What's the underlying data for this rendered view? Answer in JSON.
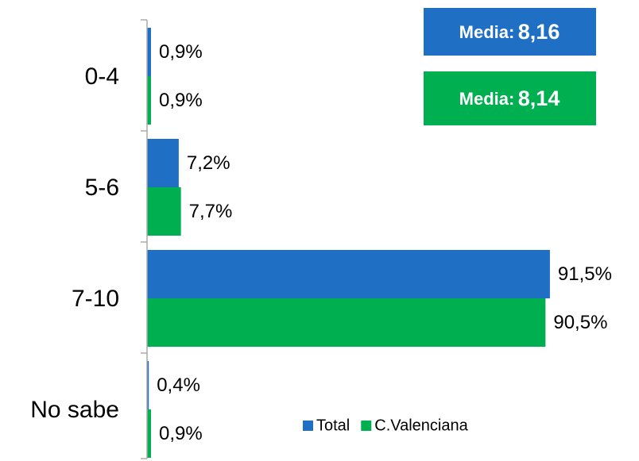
{
  "chart_data": {
    "type": "hbar",
    "categories": [
      "0-4",
      "5-6",
      "7-10",
      "No sabe"
    ],
    "series": [
      {
        "name": "Total",
        "color": "#1f6fc5",
        "values": [
          0.9,
          7.2,
          91.5,
          0.4
        ],
        "value_labels": [
          "0,9%",
          "7,2%",
          "91,5%",
          "0,4%"
        ]
      },
      {
        "name": "C.Valenciana",
        "color": "#00b050",
        "values": [
          0.9,
          7.7,
          90.5,
          0.9
        ],
        "value_labels": [
          "0,9%",
          "7,7%",
          "90,5%",
          "0,9%"
        ]
      }
    ],
    "xlim": [
      0,
      100
    ],
    "annotations": [
      {
        "label": "Media:",
        "value": "8,16",
        "color": "#1f6fc5"
      },
      {
        "label": "Media:",
        "value": "8,14",
        "color": "#00b050"
      }
    ]
  }
}
